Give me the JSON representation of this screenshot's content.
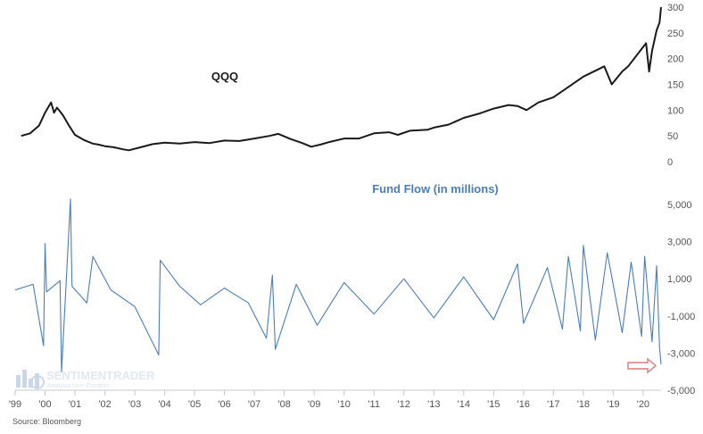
{
  "colors": {
    "price_line": "#1a1a1a",
    "flow_line": "#4a7ebb",
    "annotation": "#d97b7b",
    "watermark": "#9db7d6"
  },
  "watermark": {
    "brand": "SENTIMENTRADER",
    "tagline": "Analysis over Emotion",
    "icon": "bar-chart-logo-icon"
  },
  "source": "Source: Bloomberg",
  "annotation": {
    "icon": "arrow-right-outline-icon",
    "marks": "latest-outflow"
  },
  "chart_data": [
    {
      "type": "line",
      "title": "QQQ",
      "xlabel": "",
      "ylabel": "",
      "x_range": [
        1999.0,
        2020.6
      ],
      "ylim": [
        0,
        300
      ],
      "y_ticks": [
        0,
        50,
        100,
        150,
        200,
        250,
        300
      ],
      "y_tick_labels": [
        "0",
        "50",
        "100",
        "150",
        "200",
        "250",
        "300"
      ],
      "x_ticks": [
        1999,
        2000,
        2001,
        2002,
        2003,
        2004,
        2005,
        2006,
        2007,
        2008,
        2009,
        2010,
        2011,
        2012,
        2013,
        2014,
        2015,
        2016,
        2017,
        2018,
        2019,
        2020
      ],
      "x_tick_labels": [
        "'99",
        "'00",
        "'01",
        "'02",
        "'03",
        "'04",
        "'05",
        "'06",
        "'07",
        "'08",
        "'09",
        "'10",
        "'11",
        "'12",
        "'13",
        "'14",
        "'15",
        "'16",
        "'17",
        "'18",
        "'19",
        "'20"
      ],
      "grid": false,
      "series": [
        {
          "x": [
            1999.2,
            1999.5,
            1999.8,
            2000.0,
            2000.2,
            2000.3,
            2000.4,
            2000.6,
            2000.8,
            2001.0,
            2001.3,
            2001.6,
            2001.8,
            2002.0,
            2002.3,
            2002.6,
            2002.8,
            2003.2,
            2003.6,
            2004.0,
            2004.5,
            2005.0,
            2005.5,
            2006.0,
            2006.5,
            2007.0,
            2007.5,
            2007.8,
            2008.2,
            2008.6,
            2008.9,
            2009.2,
            2009.5,
            2010.0,
            2010.5,
            2011.0,
            2011.5,
            2011.8,
            2012.2,
            2012.8,
            2013.0,
            2013.5,
            2014.0,
            2014.5,
            2015.0,
            2015.5,
            2015.8,
            2016.1,
            2016.5,
            2017.0,
            2017.5,
            2018.0,
            2018.7,
            2018.95,
            2019.3,
            2019.5,
            2019.9,
            2020.1,
            2020.2,
            2020.3,
            2020.45,
            2020.55,
            2020.6
          ],
          "y": [
            50,
            55,
            70,
            95,
            115,
            95,
            105,
            90,
            70,
            52,
            42,
            35,
            33,
            30,
            28,
            24,
            22,
            28,
            34,
            37,
            35,
            38,
            36,
            41,
            40,
            45,
            50,
            54,
            44,
            36,
            29,
            33,
            38,
            45,
            45,
            55,
            57,
            52,
            60,
            62,
            66,
            72,
            85,
            93,
            103,
            110,
            108,
            100,
            115,
            125,
            145,
            165,
            185,
            150,
            175,
            185,
            215,
            230,
            175,
            215,
            255,
            270,
            300
          ]
        }
      ]
    },
    {
      "type": "line",
      "title": "Fund Flow (in millions)",
      "xlabel": "",
      "ylabel": "",
      "x_range": [
        1999.0,
        2020.6
      ],
      "ylim": [
        -5000,
        5000
      ],
      "y_ticks": [
        -5000,
        -3000,
        -1000,
        1000,
        3000,
        5000
      ],
      "y_tick_labels": [
        "-5,000",
        "-3,000",
        "-1,000",
        "1,000",
        "3,000",
        "5,000"
      ],
      "x_ticks": [
        1999,
        2000,
        2001,
        2002,
        2003,
        2004,
        2005,
        2006,
        2007,
        2008,
        2009,
        2010,
        2011,
        2012,
        2013,
        2014,
        2015,
        2016,
        2017,
        2018,
        2019,
        2020
      ],
      "x_tick_labels": [
        "'99",
        "'00",
        "'01",
        "'02",
        "'03",
        "'04",
        "'05",
        "'06",
        "'07",
        "'08",
        "'09",
        "'10",
        "'11",
        "'12",
        "'13",
        "'14",
        "'15",
        "'16",
        "'17",
        "'18",
        "'19",
        "'20"
      ],
      "grid": false,
      "series": [
        {
          "x": [
            1999.0,
            1999.6,
            1999.95,
            2000.0,
            2000.05,
            2000.5,
            2000.55,
            2000.85,
            2000.9,
            2001.4,
            2001.6,
            2002.2,
            2003.0,
            2003.8,
            2003.85,
            2004.5,
            2005.2,
            2006.0,
            2006.8,
            2007.4,
            2007.6,
            2007.7,
            2008.4,
            2009.1,
            2010.0,
            2011.0,
            2012.0,
            2013.0,
            2014.0,
            2015.0,
            2015.8,
            2016.0,
            2016.8,
            2017.3,
            2017.5,
            2017.9,
            2018.0,
            2018.4,
            2018.8,
            2019.3,
            2019.6,
            2019.95,
            2020.05,
            2020.3,
            2020.45,
            2020.55,
            2020.6
          ],
          "y": [
            400,
            700,
            -2600,
            2900,
            300,
            900,
            -4000,
            5300,
            600,
            -300,
            2200,
            400,
            -500,
            -3100,
            2000,
            600,
            -400,
            500,
            -300,
            -2200,
            1200,
            -2800,
            700,
            -1500,
            800,
            -900,
            1000,
            -1100,
            1100,
            -1200,
            1800,
            -1400,
            1600,
            -1700,
            2200,
            -1800,
            2800,
            -2300,
            2400,
            -1900,
            1900,
            -2100,
            2200,
            -2400,
            1700,
            -2700,
            -3600
          ]
        }
      ]
    }
  ]
}
